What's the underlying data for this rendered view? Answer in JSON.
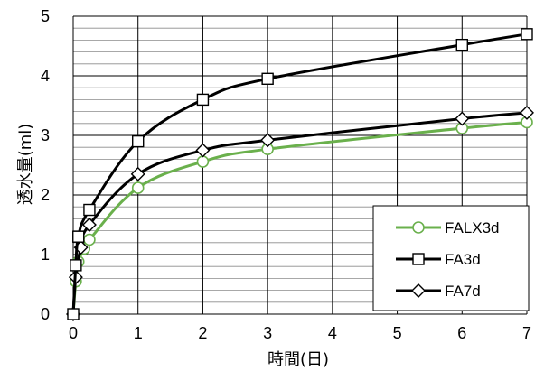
{
  "chart_data": {
    "type": "line",
    "xlabel": "時間(日)",
    "ylabel": "透水量(ml)",
    "xlim": [
      0,
      7
    ],
    "ylim": [
      0,
      5
    ],
    "x_ticks": [
      "0",
      "1",
      "2",
      "3",
      "4",
      "5",
      "6",
      "7"
    ],
    "y_ticks": [
      "0",
      "1",
      "2",
      "3",
      "4",
      "5"
    ],
    "grid": true,
    "legend_position": "bottom-right",
    "series": [
      {
        "name": "FALX3d",
        "color": "#6ab04c",
        "marker": "circle",
        "x": [
          0,
          0.04,
          0.08,
          0.17,
          0.25,
          1,
          2,
          3,
          6,
          7
        ],
        "y": [
          0,
          0.55,
          0.88,
          1.1,
          1.25,
          2.12,
          2.56,
          2.77,
          3.12,
          3.22
        ]
      },
      {
        "name": "FA3d",
        "color": "#000000",
        "marker": "square",
        "x": [
          0,
          0.04,
          0.08,
          0.25,
          1,
          2,
          3,
          6,
          7
        ],
        "y": [
          0,
          0.82,
          1.3,
          1.75,
          2.9,
          3.6,
          3.95,
          4.52,
          4.7
        ]
      },
      {
        "name": "FA7d",
        "color": "#000000",
        "marker": "diamond",
        "x": [
          0,
          0.04,
          0.12,
          0.25,
          1,
          2,
          3,
          6,
          7
        ],
        "y": [
          0,
          0.62,
          1.12,
          1.5,
          2.35,
          2.75,
          2.92,
          3.28,
          3.38
        ]
      }
    ]
  }
}
